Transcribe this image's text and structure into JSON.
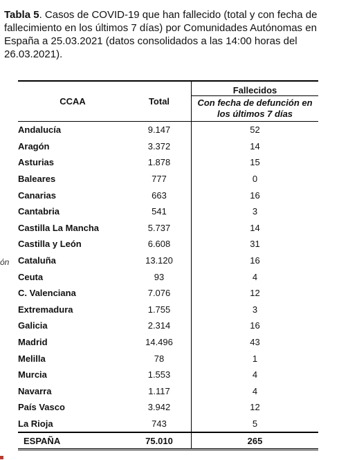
{
  "caption": {
    "label": "Tabla 5",
    "text": ". Casos de COVID-19 que han fallecido (total y con fecha de fallecimiento en los últimos 7 días) por Comunidades Autónomas en España a 25.03.2021 (datos consolidados a las 14:00 horas del 26.03.2021)."
  },
  "side_fragment": "ón",
  "table": {
    "header": {
      "ccaa": "CCAA",
      "total": "Total",
      "fallecidos": "Fallecidos",
      "recent": "Con fecha de defunción en los últimos 7 días"
    },
    "rows": [
      {
        "ccaa": "Andalucía",
        "total": "9.147",
        "recent": "52"
      },
      {
        "ccaa": "Aragón",
        "total": "3.372",
        "recent": "14"
      },
      {
        "ccaa": "Asturias",
        "total": "1.878",
        "recent": "15"
      },
      {
        "ccaa": "Baleares",
        "total": "777",
        "recent": "0"
      },
      {
        "ccaa": "Canarias",
        "total": "663",
        "recent": "16"
      },
      {
        "ccaa": "Cantabria",
        "total": "541",
        "recent": "3"
      },
      {
        "ccaa": "Castilla La Mancha",
        "total": "5.737",
        "recent": "14"
      },
      {
        "ccaa": "Castilla y León",
        "total": "6.608",
        "recent": "31"
      },
      {
        "ccaa": "Cataluña",
        "total": "13.120",
        "recent": "16"
      },
      {
        "ccaa": "Ceuta",
        "total": "93",
        "recent": "4"
      },
      {
        "ccaa": "C. Valenciana",
        "total": "7.076",
        "recent": "12"
      },
      {
        "ccaa": "Extremadura",
        "total": "1.755",
        "recent": "3"
      },
      {
        "ccaa": "Galicia",
        "total": "2.314",
        "recent": "16"
      },
      {
        "ccaa": "Madrid",
        "total": "14.496",
        "recent": "43"
      },
      {
        "ccaa": "Melilla",
        "total": "78",
        "recent": "1"
      },
      {
        "ccaa": "Murcia",
        "total": "1.553",
        "recent": "4"
      },
      {
        "ccaa": "Navarra",
        "total": "1.117",
        "recent": "4"
      },
      {
        "ccaa": "País Vasco",
        "total": "3.942",
        "recent": "12"
      },
      {
        "ccaa": "La Rioja",
        "total": "743",
        "recent": "5"
      }
    ],
    "totals": {
      "ccaa": "ESPAÑA",
      "total": "75.010",
      "recent": "265"
    }
  },
  "colors": {
    "text": "#111111",
    "accent_dot": "#c0392b"
  }
}
